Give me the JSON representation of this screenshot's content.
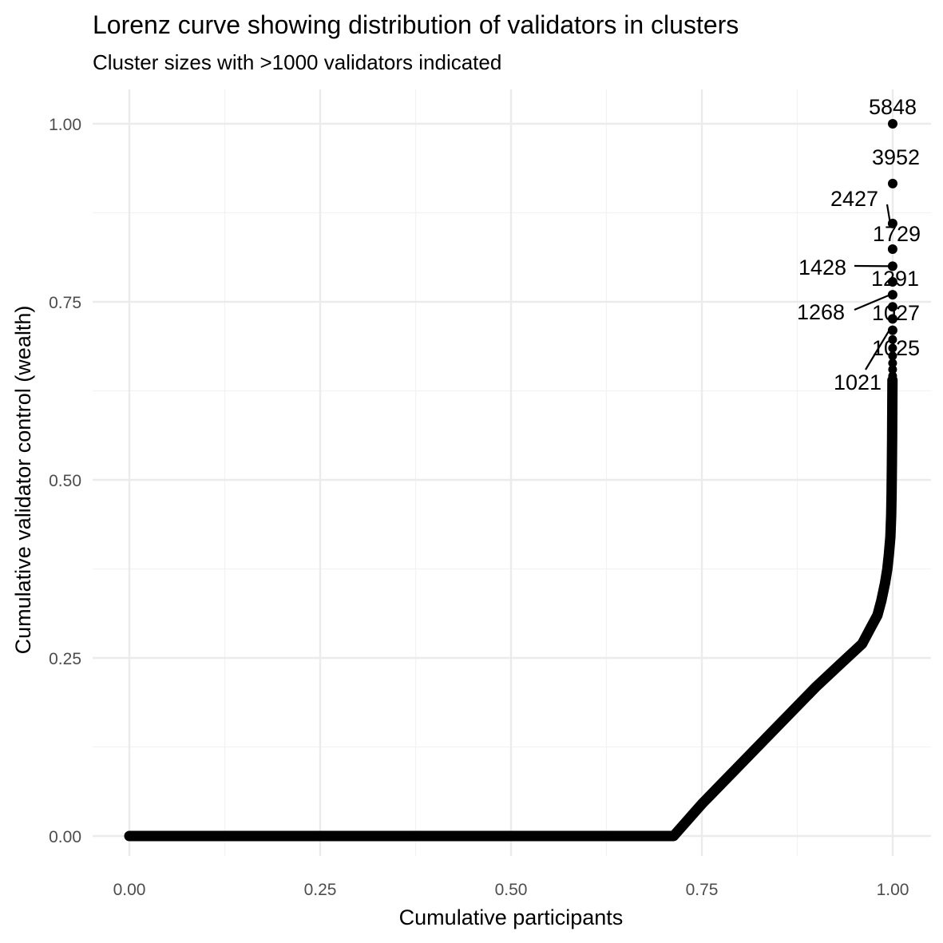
{
  "chart_data": {
    "type": "scatter",
    "title": "Lorenz curve showing distribution of validators in clusters",
    "subtitle": "Cluster sizes with >1000 validators indicated",
    "xlabel": "Cumulative participants",
    "ylabel": "Cumulative validator control (wealth)",
    "xlim": [
      -0.1,
      1.05
    ],
    "ylim": [
      -0.04,
      1.06
    ],
    "x_ticks": [
      0,
      0.25,
      0.5,
      0.75,
      1
    ],
    "x_tick_labels": [
      "0.00",
      "0.25",
      "0.50",
      "0.75",
      "1.00"
    ],
    "y_ticks": [
      0,
      0.25,
      0.5,
      0.75,
      1
    ],
    "y_tick_labels": [
      "0.00",
      "0.25",
      "0.50",
      "0.75",
      "1.00"
    ],
    "grid": true,
    "legend": "none",
    "point_color": "#000000",
    "lorenz_curve": {
      "x": [
        0,
        0.713,
        0.75,
        0.8,
        0.85,
        0.9,
        0.93,
        0.96,
        0.97,
        0.98,
        0.985,
        0.99,
        0.993,
        0.995,
        0.997,
        0.998,
        0.9985,
        0.999,
        0.9993,
        0.9995,
        0.9997
      ],
      "y": [
        0,
        0,
        0.045,
        0.1,
        0.155,
        0.21,
        0.24,
        0.27,
        0.29,
        0.31,
        0.33,
        0.355,
        0.375,
        0.395,
        0.42,
        0.45,
        0.48,
        0.52,
        0.56,
        0.6,
        0.64
      ]
    },
    "labeled_clusters": [
      {
        "size": "5848",
        "x": 1.0,
        "y": 1.0
      },
      {
        "size": "3952",
        "x": 1.0,
        "y": 0.916
      },
      {
        "size": "2427",
        "x": 0.9999,
        "y": 0.86
      },
      {
        "size": "1729",
        "x": 0.9999,
        "y": 0.824
      },
      {
        "size": "1428",
        "x": 0.9999,
        "y": 0.8
      },
      {
        "size": "1291",
        "x": 0.9999,
        "y": 0.778
      },
      {
        "size": "1268",
        "x": 0.9999,
        "y": 0.76
      },
      {
        "size": "1027",
        "x": 0.9999,
        "y": 0.743
      },
      {
        "size": "1025",
        "x": 0.9999,
        "y": 0.726
      },
      {
        "size": "1021",
        "x": 0.9999,
        "y": 0.71
      }
    ],
    "small_clusters_y": [
      0.697,
      0.685,
      0.674,
      0.664,
      0.655,
      0.646
    ]
  }
}
